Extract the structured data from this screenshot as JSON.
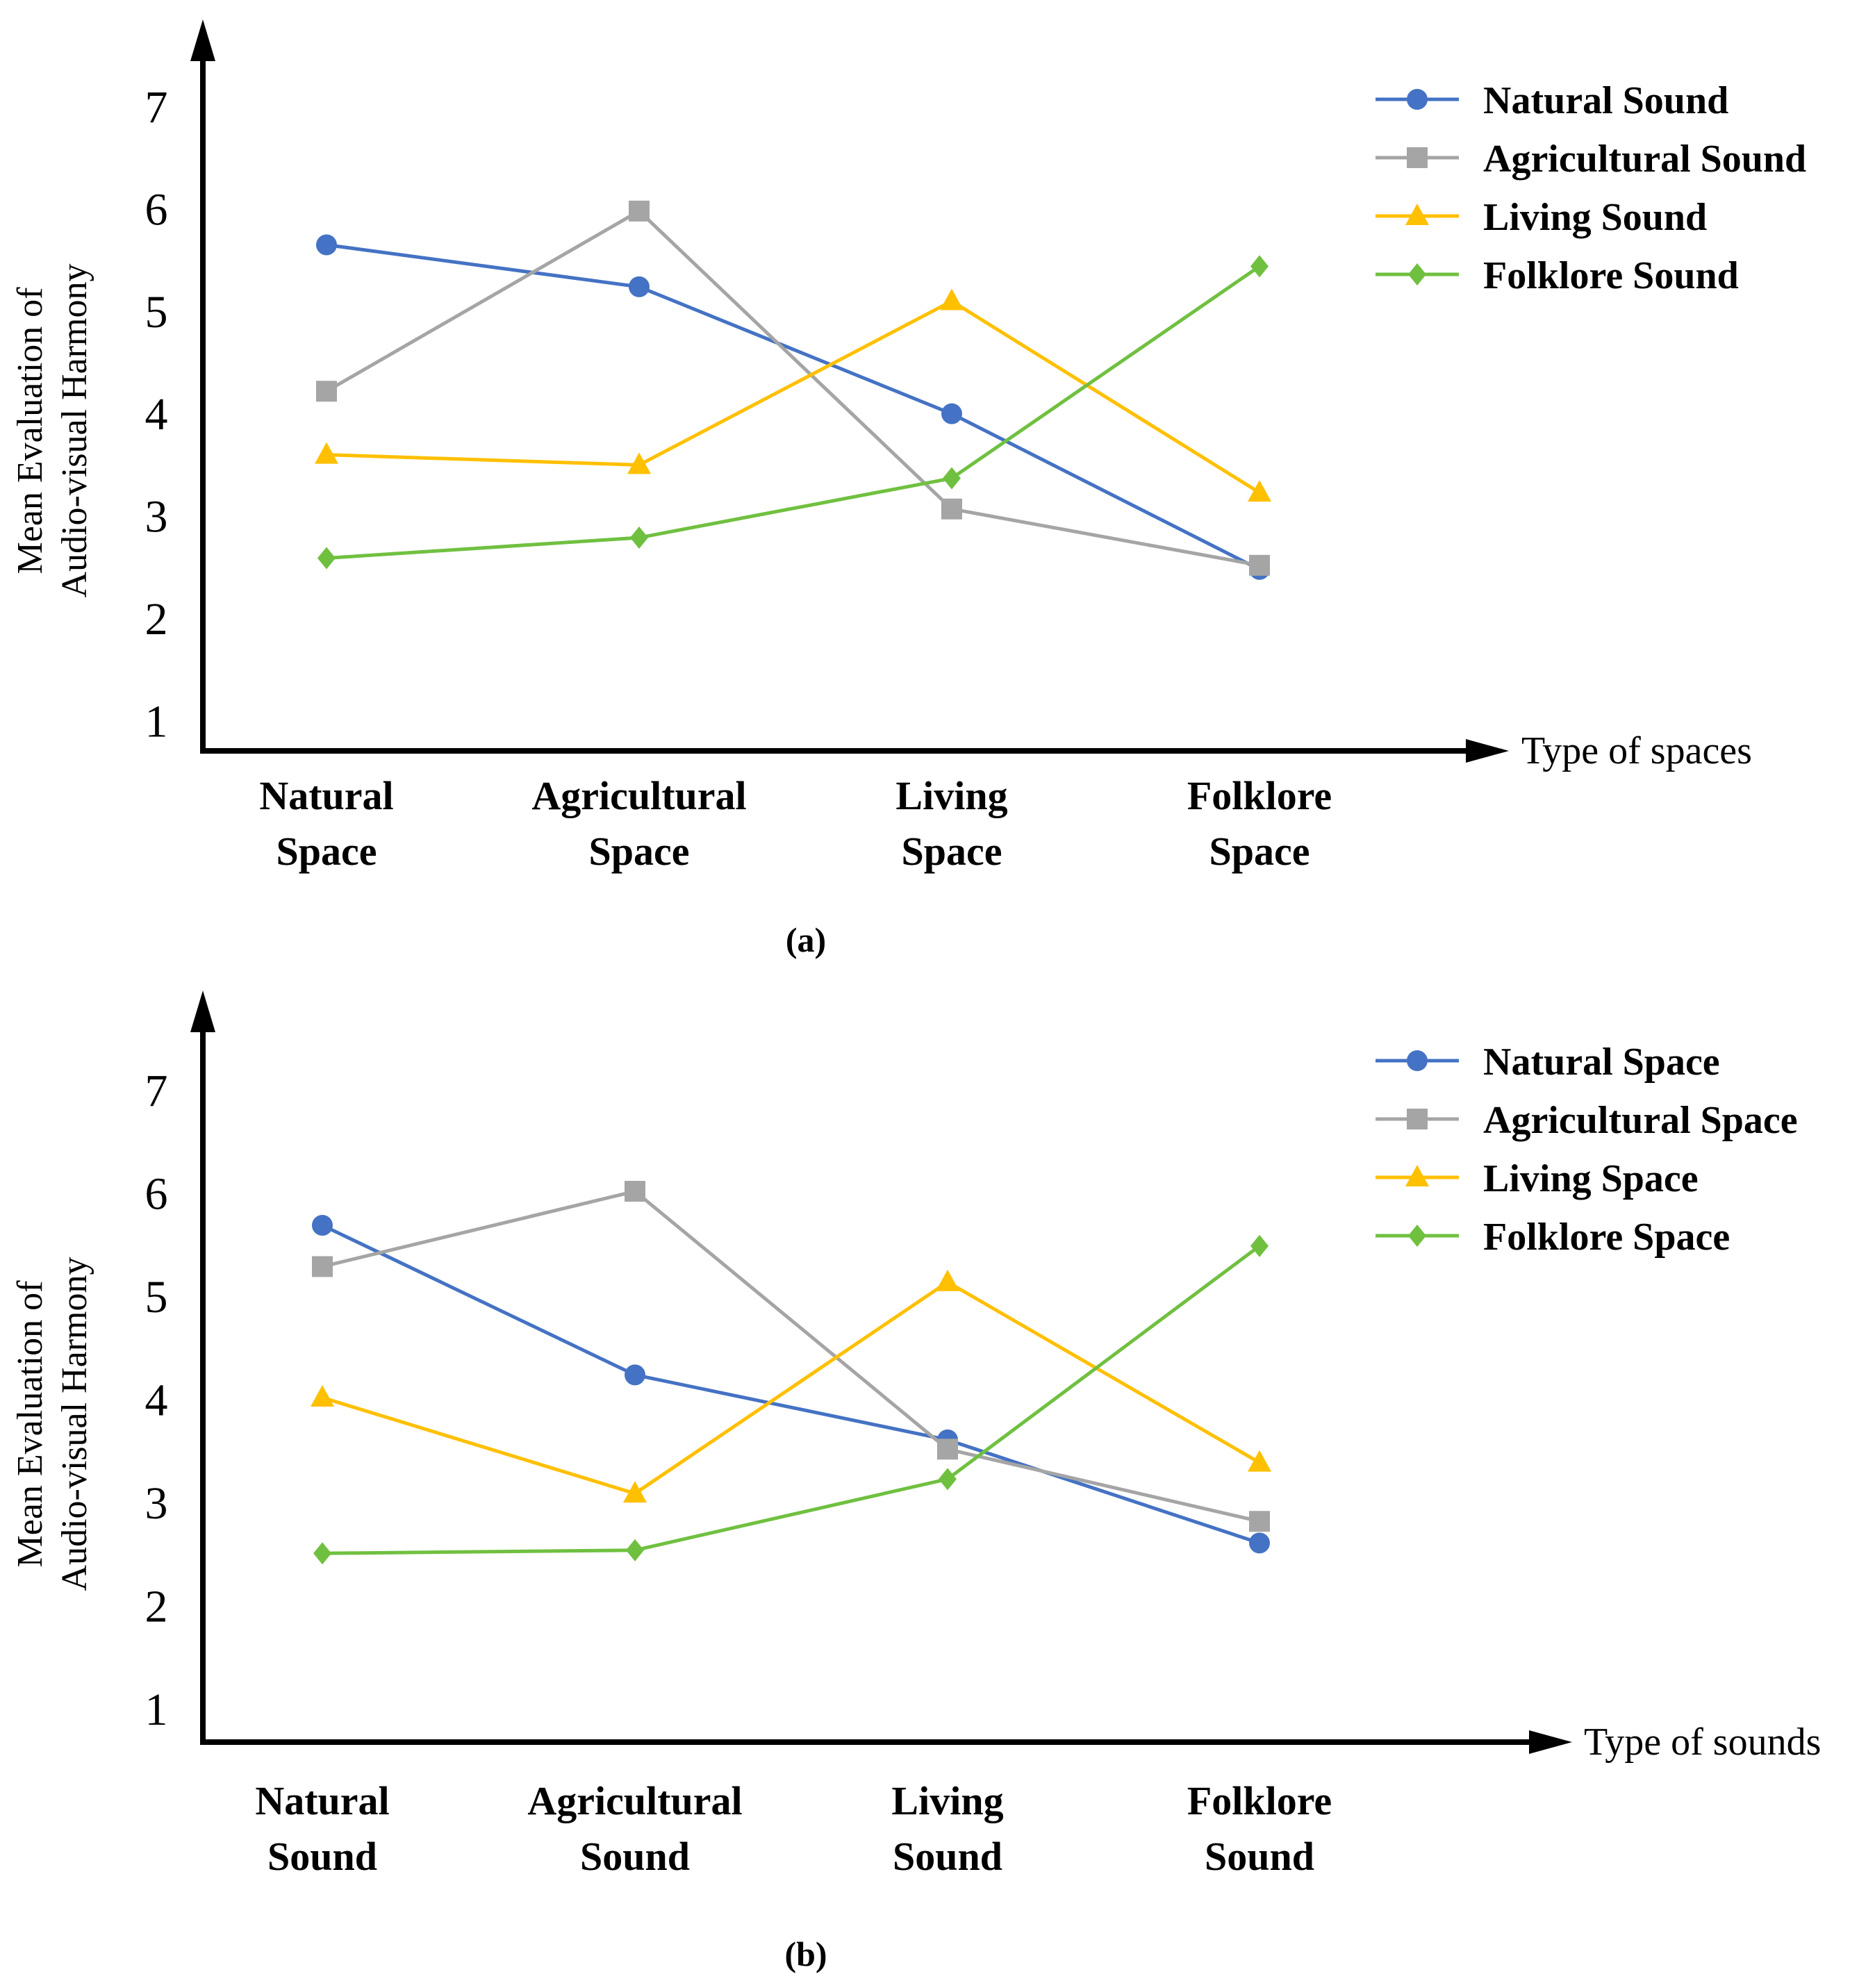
{
  "chart_data": [
    {
      "type": "line",
      "panel_label": "(a)",
      "xlabel": "Type of spaces",
      "ylabel": [
        "Mean Evaluation of",
        "Audio-visual Harmony"
      ],
      "ylim": [
        1,
        7
      ],
      "yticks": [
        "1",
        "2",
        "3",
        "4",
        "5",
        "6",
        "7"
      ],
      "categories": [
        [
          "Natural",
          "Space"
        ],
        [
          "Agricultural",
          "Space"
        ],
        [
          "Living",
          "Space"
        ],
        [
          "Folklore",
          "Space"
        ]
      ],
      "legend_position": "top-right",
      "grid": false,
      "series": [
        {
          "name": "Natural Sound",
          "color": "#4472C4",
          "marker": "circle",
          "values": [
            5.64,
            5.23,
            3.99,
            2.47
          ]
        },
        {
          "name": "Agricultural Sound",
          "color": "#A5A5A5",
          "marker": "square",
          "values": [
            4.21,
            5.97,
            3.06,
            2.51
          ]
        },
        {
          "name": "Living Sound",
          "color": "#FFC000",
          "marker": "triangle",
          "values": [
            3.59,
            3.49,
            5.09,
            3.22
          ]
        },
        {
          "name": "Folklore Sound",
          "color": "#70C040",
          "marker": "diamond",
          "values": [
            2.58,
            2.78,
            3.36,
            5.43
          ]
        }
      ]
    },
    {
      "type": "line",
      "panel_label": "(b)",
      "xlabel": "Type of sounds",
      "ylabel": [
        "Mean Evaluation of",
        "Audio-visual Harmony"
      ],
      "ylim": [
        1,
        7
      ],
      "yticks": [
        "1",
        "2",
        "3",
        "4",
        "5",
        "6",
        "7"
      ],
      "categories": [
        [
          "Natural",
          "Sound"
        ],
        [
          "Agricultural",
          "Sound"
        ],
        [
          "Living",
          "Sound"
        ],
        [
          "Folklore",
          "Sound"
        ]
      ],
      "legend_position": "top-right",
      "grid": false,
      "series": [
        {
          "name": "Natural Space",
          "color": "#4472C4",
          "marker": "circle",
          "values": [
            5.68,
            4.23,
            3.6,
            2.6
          ]
        },
        {
          "name": "Agricultural Space",
          "color": "#A5A5A5",
          "marker": "square",
          "values": [
            5.28,
            6.01,
            3.51,
            2.81
          ]
        },
        {
          "name": "Living Space",
          "color": "#FFC000",
          "marker": "triangle",
          "values": [
            4.01,
            3.08,
            5.13,
            3.38
          ]
        },
        {
          "name": "Folklore Space",
          "color": "#70C040",
          "marker": "diamond",
          "values": [
            2.5,
            2.53,
            3.22,
            5.48
          ]
        }
      ]
    }
  ]
}
